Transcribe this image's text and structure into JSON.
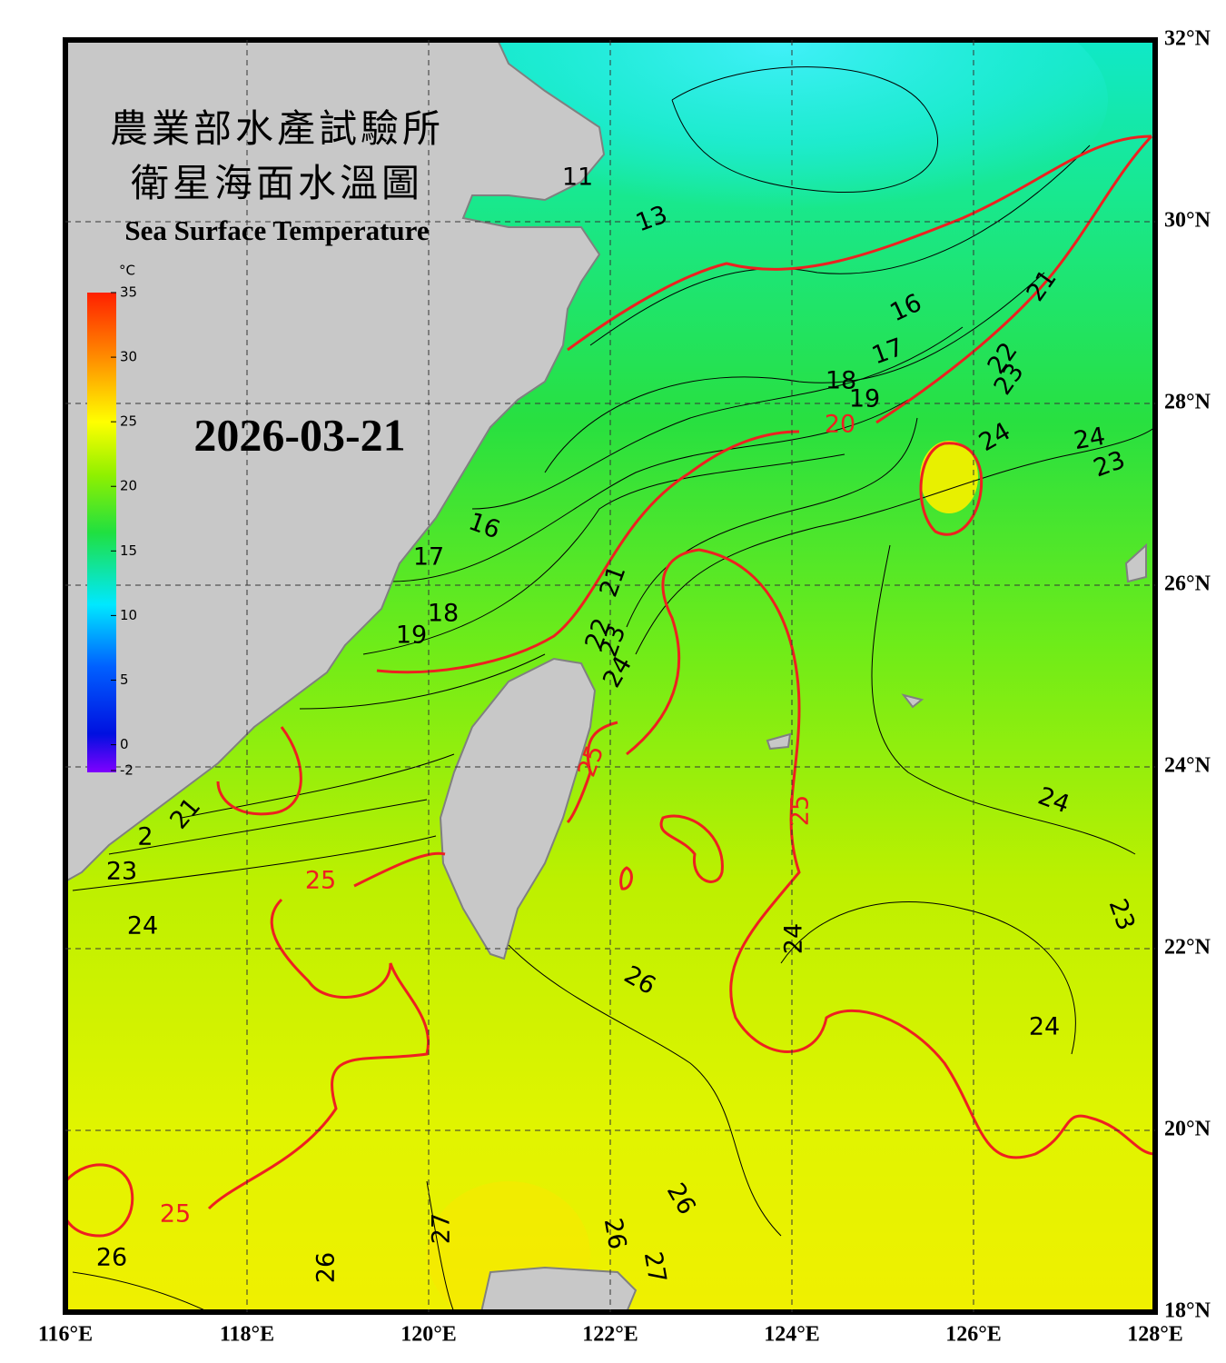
{
  "header": {
    "title_zh": "農業部水產試驗所",
    "subtitle_zh": "衛星海面水溫圖",
    "title_en": "Sea Surface Temperature",
    "date": "2026-03-21"
  },
  "map": {
    "xlim": [
      116,
      128
    ],
    "ylim": [
      18,
      32
    ],
    "grid": true,
    "xticks": [
      {
        "value": 116,
        "label": "116°E"
      },
      {
        "value": 118,
        "label": "118°E"
      },
      {
        "value": 120,
        "label": "120°E"
      },
      {
        "value": 122,
        "label": "122°E"
      },
      {
        "value": 124,
        "label": "124°E"
      },
      {
        "value": 126,
        "label": "126°E"
      },
      {
        "value": 128,
        "label": "128°E"
      }
    ],
    "yticks": [
      {
        "value": 18,
        "label": "18°N"
      },
      {
        "value": 20,
        "label": "20°N"
      },
      {
        "value": 22,
        "label": "22°N"
      },
      {
        "value": 24,
        "label": "24°N"
      },
      {
        "value": 26,
        "label": "26°N"
      },
      {
        "value": 28,
        "label": "28°N"
      },
      {
        "value": 30,
        "label": "30°N"
      },
      {
        "value": 32,
        "label": "32°N"
      }
    ]
  },
  "colorbar": {
    "unit": "°C",
    "lim": [
      -2,
      35
    ],
    "ticks": [
      -2,
      0,
      5,
      10,
      15,
      20,
      25,
      30,
      35
    ]
  },
  "contour_labels": [
    "11",
    "13",
    "16",
    "17",
    "18",
    "19",
    "20",
    "21",
    "22",
    "23",
    "24",
    "24",
    "23",
    "16",
    "17",
    "18",
    "19",
    "21",
    "22",
    "23",
    "24",
    "25",
    "21",
    "2",
    "23",
    "24",
    "25",
    "25",
    "24",
    "23",
    "24",
    "26",
    "24",
    "26",
    "25",
    "27",
    "26",
    "26",
    "26",
    "27"
  ]
}
